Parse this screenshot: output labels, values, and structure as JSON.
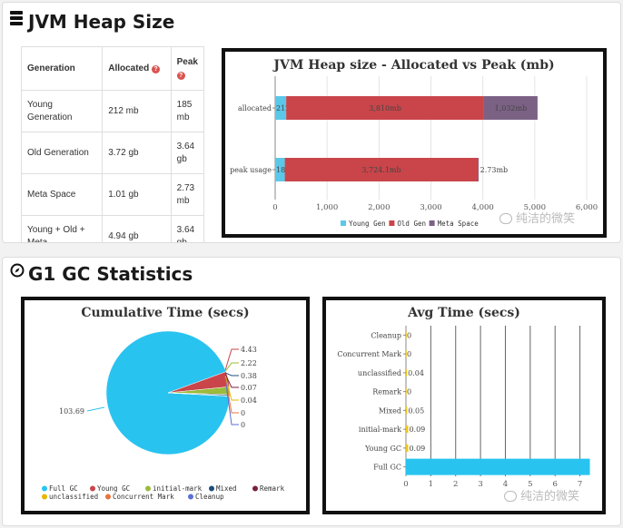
{
  "heap_section": {
    "title": "JVM Heap Size",
    "table": {
      "headers": [
        "Generation",
        "Allocated",
        "Peak"
      ],
      "rows": [
        [
          "Young Generation",
          "212 mb",
          "185 mb"
        ],
        [
          "Old Generation",
          "3.72 gb",
          "3.64 gb"
        ],
        [
          "Meta Space",
          "1.01 gb",
          "2.73 mb"
        ],
        [
          "Young + Old + Meta",
          "4.94 gb",
          "3.64 gb"
        ]
      ]
    }
  },
  "gc_section": {
    "title": "G1 GC Statistics"
  },
  "watermark": "纯洁的微笑",
  "colors": {
    "young": "#5bc8ea",
    "old": "#c9454a",
    "meta": "#7b6285",
    "full_gc": "#29c3f0"
  },
  "chart_data": [
    {
      "type": "bar",
      "orientation": "horizontal",
      "stacked": true,
      "title": "JVM Heap size - Allocated vs Peak (mb)",
      "categories": [
        "allocated",
        "peak usage"
      ],
      "series": [
        {
          "name": "Young Gen",
          "values": [
            212,
            185
          ],
          "labels": [
            "212mb",
            "185mb"
          ]
        },
        {
          "name": "Old Gen",
          "values": [
            3810,
            3724.1
          ],
          "labels": [
            "3,810mb",
            "3,724.1mb"
          ]
        },
        {
          "name": "Meta Space",
          "values": [
            1032,
            2.73
          ],
          "labels": [
            "1,032mb",
            "2.73mb"
          ]
        }
      ],
      "xticks": [
        "0",
        "1,000",
        "2,000",
        "3,000",
        "4,000",
        "5,000",
        "6,000"
      ],
      "xlim": [
        0,
        6000
      ],
      "legend": "bottom"
    },
    {
      "type": "pie",
      "title": "Cumulative Time (secs)",
      "slices": [
        {
          "name": "Full GC",
          "value": 103.69,
          "label": "103.69"
        },
        {
          "name": "Young GC",
          "value": 4.43,
          "label": "4.43"
        },
        {
          "name": "initial-mark",
          "value": 2.22,
          "label": "2.22"
        },
        {
          "name": "Mixed",
          "value": 0.38,
          "label": "0.38"
        },
        {
          "name": "Remark",
          "value": 0.07,
          "label": "0.07"
        },
        {
          "name": "unclassified",
          "value": 0.04,
          "label": "0.04"
        },
        {
          "name": "Concurrent Mark",
          "value": 0,
          "label": "0"
        },
        {
          "name": "Cleanup",
          "value": 0,
          "label": "0"
        }
      ],
      "legend": "bottom"
    },
    {
      "type": "bar",
      "orientation": "horizontal",
      "title": "Avg Time (secs)",
      "categories": [
        "Cleanup",
        "Concurrent Mark",
        "unclassified",
        "Remark",
        "Mixed",
        "initial-mark",
        "Young GC",
        "Full GC"
      ],
      "values": [
        0,
        0,
        0.04,
        0,
        0.05,
        0.09,
        0.09,
        7.4
      ],
      "labels": [
        "0",
        "0",
        "0.04",
        "0",
        "0.05",
        "0.09",
        "0.09",
        ""
      ],
      "xticks": [
        "0",
        "1",
        "2",
        "3",
        "4",
        "5",
        "6",
        "7"
      ],
      "xlim": [
        0,
        7.6
      ],
      "grid": true
    }
  ]
}
